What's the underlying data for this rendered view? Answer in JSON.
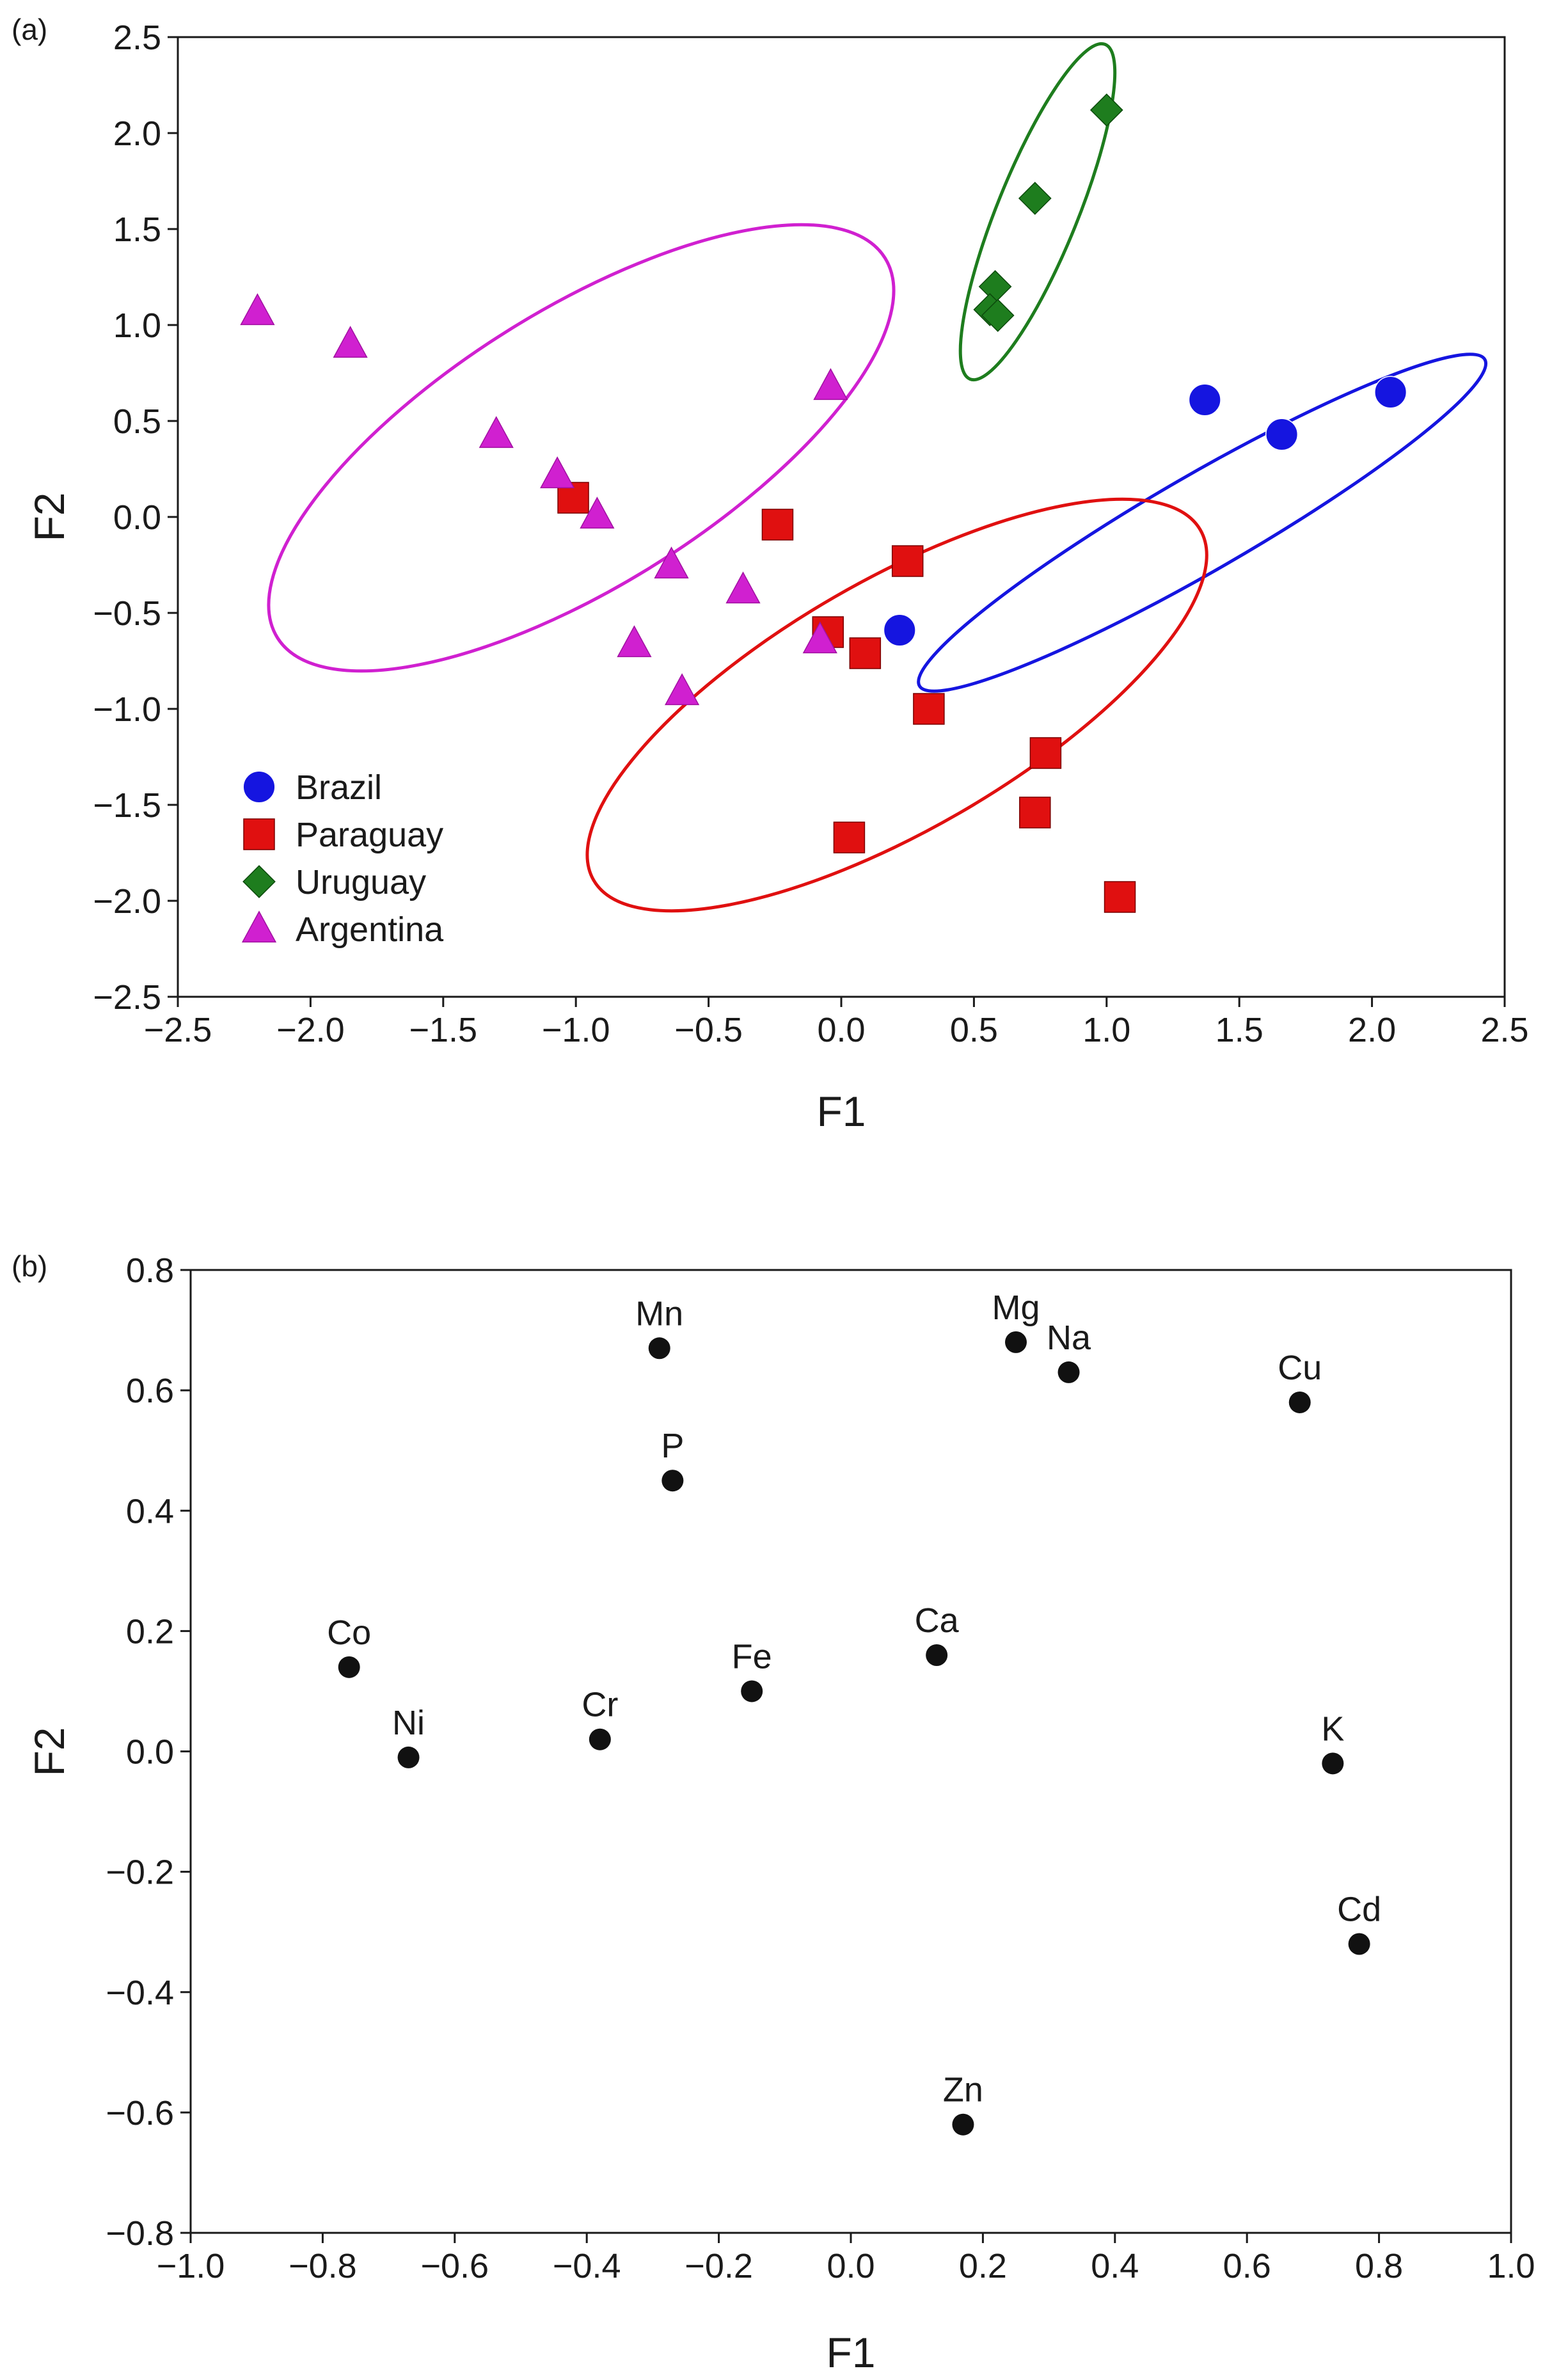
{
  "chart_data": [
    {
      "panel_label": "(a)",
      "type": "scatter",
      "xlabel": "F1",
      "ylabel": "F2",
      "xlim": [
        -2.5,
        2.5
      ],
      "ylim": [
        -2.5,
        2.5
      ],
      "xticks": [
        "−2.5",
        "−2.0",
        "−1.5",
        "−1.0",
        "−0.5",
        "0.0",
        "0.5",
        "1.0",
        "1.5",
        "2.0",
        "2.5"
      ],
      "yticks": [
        "−2.5",
        "−2.0",
        "−1.5",
        "−1.0",
        "−0.5",
        "0.0",
        "0.5",
        "1.0",
        "1.5",
        "2.0",
        "2.5"
      ],
      "legend_position": "bottom-left",
      "series": [
        {
          "name": "Brazil",
          "color": "#1515e0",
          "marker": "circle",
          "points": [
            [
              1.37,
              0.61
            ],
            [
              1.66,
              0.43
            ],
            [
              2.07,
              0.65
            ],
            [
              0.22,
              -0.59
            ]
          ],
          "ellipse": {
            "cx": 1.36,
            "cy": -0.03,
            "rx": 1.23,
            "ry": 0.25,
            "angle_deg": -30
          }
        },
        {
          "name": "Paraguay",
          "color": "#e01010",
          "marker": "square",
          "points": [
            [
              -1.01,
              0.1
            ],
            [
              -0.24,
              -0.04
            ],
            [
              0.25,
              -0.23
            ],
            [
              -0.05,
              -0.6
            ],
            [
              0.09,
              -0.71
            ],
            [
              0.33,
              -1.0
            ],
            [
              0.77,
              -1.23
            ],
            [
              0.03,
              -1.67
            ],
            [
              0.73,
              -1.54
            ],
            [
              1.05,
              -1.98
            ]
          ],
          "ellipse": {
            "cx": 0.21,
            "cy": -0.98,
            "rx": 1.32,
            "ry": 0.65,
            "angle_deg": -30
          }
        },
        {
          "name": "Uruguay",
          "color": "#1e7d1e",
          "marker": "diamond",
          "points": [
            [
              1.0,
              2.12
            ],
            [
              0.73,
              1.66
            ],
            [
              0.58,
              1.2
            ],
            [
              0.56,
              1.08
            ],
            [
              0.59,
              1.05
            ]
          ],
          "ellipse": {
            "cx": 0.74,
            "cy": 1.59,
            "rx": 0.68,
            "ry": 0.21,
            "angle_deg": -68
          }
        },
        {
          "name": "Argentina",
          "color": "#d020d0",
          "marker": "triangle",
          "points": [
            [
              -2.2,
              1.07
            ],
            [
              -1.85,
              0.9
            ],
            [
              -1.3,
              0.43
            ],
            [
              -1.07,
              0.22
            ],
            [
              -0.92,
              0.01
            ],
            [
              -0.04,
              0.68
            ],
            [
              -0.64,
              -0.25
            ],
            [
              -0.37,
              -0.38
            ],
            [
              -0.78,
              -0.66
            ],
            [
              -0.6,
              -0.91
            ],
            [
              -0.08,
              -0.64
            ]
          ],
          "ellipse": {
            "cx": -0.98,
            "cy": 0.36,
            "rx": 1.35,
            "ry": 0.72,
            "angle_deg": -32
          }
        }
      ]
    },
    {
      "panel_label": "(b)",
      "type": "scatter",
      "xlabel": "F1",
      "ylabel": "F2",
      "xlim": [
        -1.0,
        1.0
      ],
      "ylim": [
        -0.8,
        0.8
      ],
      "xticks": [
        "−1.0",
        "−0.8",
        "−0.6",
        "−0.4",
        "−0.2",
        "0.0",
        "0.2",
        "0.4",
        "0.6",
        "0.8",
        "1.0"
      ],
      "yticks": [
        "0.8",
        "0.6",
        "0.4",
        "0.2",
        "0.0",
        "−0.2",
        "−0.4",
        "−0.6",
        "−0.8"
      ],
      "color": "#111111",
      "points": [
        {
          "label": "Mn",
          "x": -0.29,
          "y": 0.67
        },
        {
          "label": "Mg",
          "x": 0.25,
          "y": 0.68
        },
        {
          "label": "Na",
          "x": 0.33,
          "y": 0.63
        },
        {
          "label": "Cu",
          "x": 0.68,
          "y": 0.58
        },
        {
          "label": "P",
          "x": -0.27,
          "y": 0.45
        },
        {
          "label": "Co",
          "x": -0.76,
          "y": 0.14
        },
        {
          "label": "Ni",
          "x": -0.67,
          "y": -0.01
        },
        {
          "label": "Cr",
          "x": -0.38,
          "y": 0.02
        },
        {
          "label": "Fe",
          "x": -0.15,
          "y": 0.1
        },
        {
          "label": "Ca",
          "x": 0.13,
          "y": 0.16
        },
        {
          "label": "K",
          "x": 0.73,
          "y": -0.02
        },
        {
          "label": "Cd",
          "x": 0.77,
          "y": -0.32
        },
        {
          "label": "Zn",
          "x": 0.17,
          "y": -0.62
        }
      ]
    }
  ]
}
